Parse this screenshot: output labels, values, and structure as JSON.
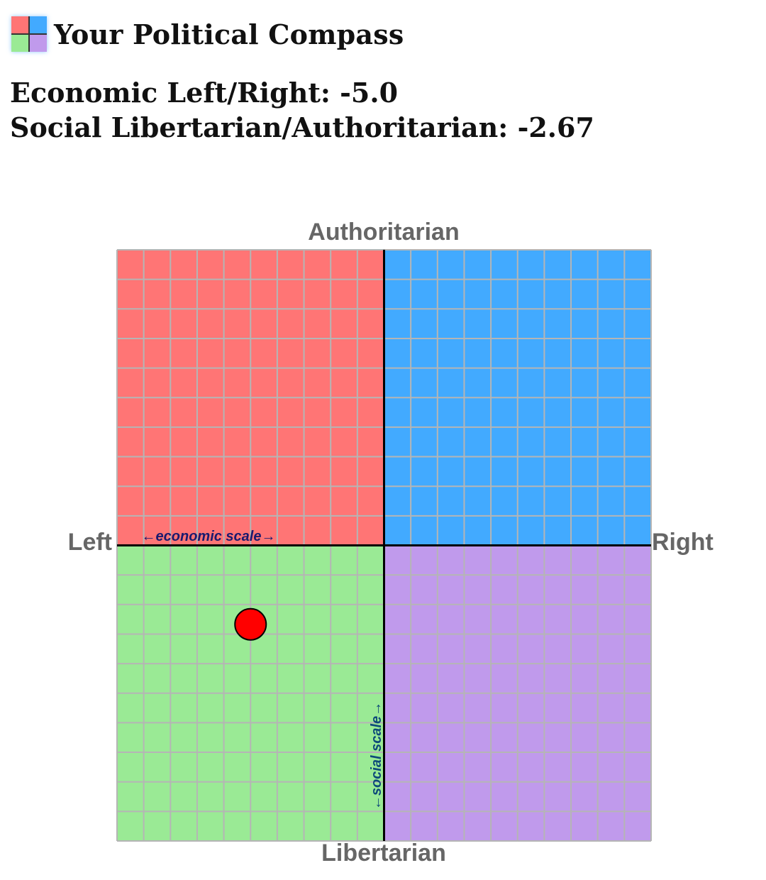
{
  "header": {
    "title": "Your Political Compass",
    "logo_icon": "political-compass-logo-icon"
  },
  "scores": {
    "economic_label": "Economic Left/Right:",
    "economic_value": "-5.0",
    "social_label": "Social Libertarian/Authoritarian:",
    "social_value": "-2.67"
  },
  "chart_data": {
    "type": "scatter",
    "x": [
      -5.0
    ],
    "y": [
      -2.67
    ],
    "xlim": [
      -10,
      10
    ],
    "ylim": [
      -10,
      10
    ],
    "grid": true,
    "axis_labels": {
      "top": "Authoritarian",
      "bottom": "Libertarian",
      "left": "Left",
      "right": "Right"
    },
    "annotations": {
      "economic_scale": "←economic scale→",
      "social_scale": "←social scale→"
    },
    "colors": {
      "auth_left": "#ff7575",
      "auth_right": "#42aaff",
      "lib_left": "#9aea95",
      "lib_right": "#c09aec",
      "grid": "#b5b5b5",
      "axes": "#000000",
      "marker": "#ff0000",
      "axis_label": "#666666",
      "scale_label_econ": "#1a1a6e",
      "scale_label_social": "#0e4a7a"
    }
  }
}
